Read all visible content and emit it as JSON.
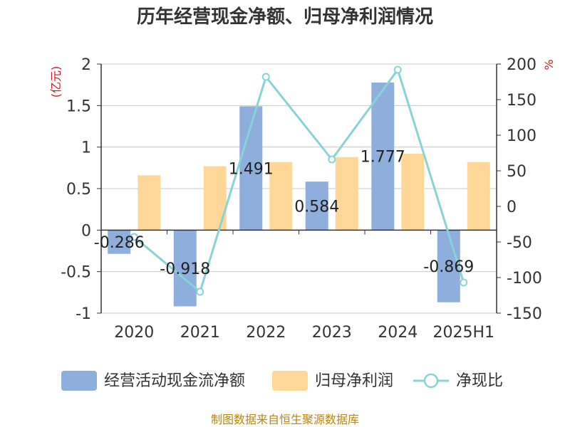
{
  "title": "历年经营现金净额、归母净利润情况",
  "source": "制图数据来自恒生聚源数据库",
  "colors": {
    "cashflow": "#8eaedc",
    "profit": "#ffd799",
    "ratio": "#87d3d6",
    "unit": "#d2191c",
    "axis": "#333333",
    "grid": "#c8c8c8",
    "source": "#b8860b"
  },
  "chart_data": {
    "type": "bar",
    "categories": [
      "2020",
      "2021",
      "2022",
      "2023",
      "2024",
      "2025H1"
    ],
    "left_axis": {
      "unit": "(亿元)",
      "ticks": [
        "2",
        "1.5",
        "1",
        "0.5",
        "0",
        "-0.5",
        "-1"
      ],
      "range": [
        -1,
        2
      ]
    },
    "right_axis": {
      "unit": "%",
      "ticks": [
        "200",
        "150",
        "100",
        "50",
        "0",
        "-50",
        "-100",
        "-150"
      ],
      "range": [
        -150,
        200
      ]
    },
    "series": [
      {
        "name": "经营活动现金流净额",
        "type": "bar",
        "axis": "left",
        "values": [
          -0.286,
          -0.918,
          1.491,
          0.584,
          1.777,
          -0.869
        ],
        "labels": [
          "-0.286",
          "-0.918",
          "1.491",
          "0.584",
          "1.777",
          "-0.869"
        ]
      },
      {
        "name": "归母净利润",
        "type": "bar",
        "axis": "left",
        "values": [
          0.66,
          0.77,
          0.82,
          0.88,
          0.92,
          0.82
        ]
      },
      {
        "name": "净现比",
        "type": "line",
        "axis": "right",
        "values": [
          -43,
          -120,
          182,
          66,
          192,
          -107
        ]
      }
    ],
    "grid": true,
    "legend_position": "bottom"
  }
}
